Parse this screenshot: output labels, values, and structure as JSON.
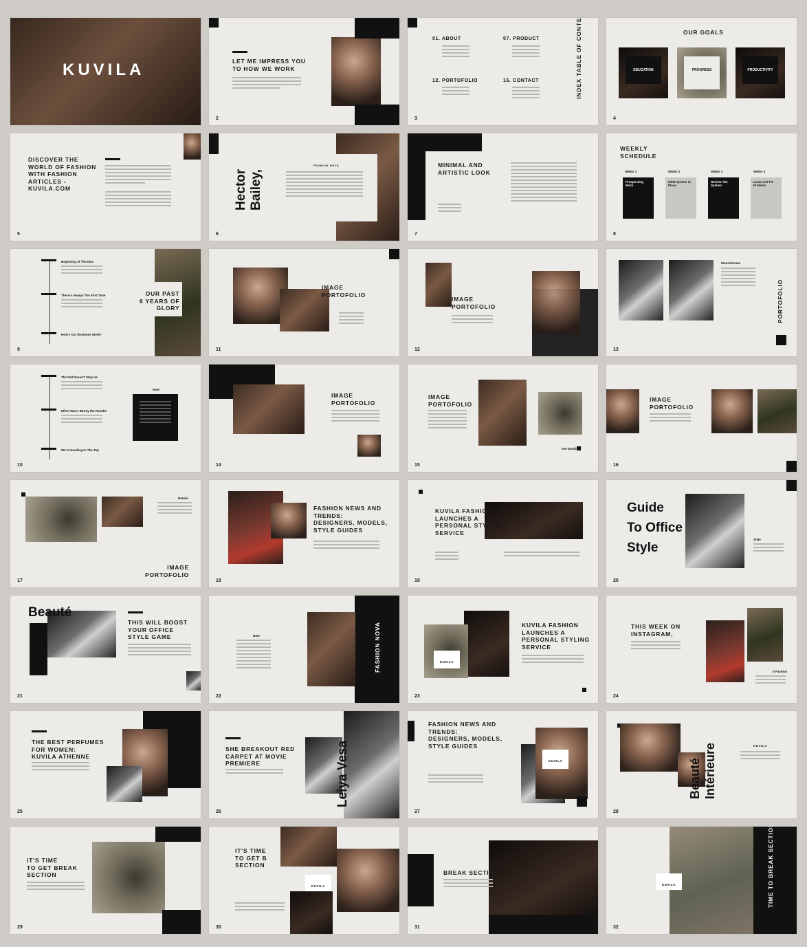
{
  "slides": [
    {
      "num": "",
      "title": "KUVILA"
    },
    {
      "num": "2",
      "title": "LET ME IMPRESS YOU\nTO HOW WE WORK"
    },
    {
      "num": "3",
      "toc": [
        "01. ABOUT",
        "07. PRODUCT",
        "12. PORTOFOLIO",
        "16. CONTACT"
      ],
      "side": "INDEX TABLE OF\nCONTENT"
    },
    {
      "num": "4",
      "title": "OUR GOALS",
      "cards": [
        "EDUCATION",
        "PROGRESS",
        "PRODUCTIVITY"
      ]
    },
    {
      "num": "5",
      "title": "DISCOVER THE\nWORLD OF FASHION\nWITH FASHION\nARTICLES -\nKUVILA.COM"
    },
    {
      "num": "6",
      "big": "Hector\nBailey,",
      "label": "FASHION NOVA"
    },
    {
      "num": "7",
      "title": "MINIMAL AND\nARTISTIC LOOK"
    },
    {
      "num": "8",
      "title": "WEEKLY\nSCHEDULE",
      "weeks": [
        "WEEK 1",
        "WEEK 2",
        "WEEK 3",
        "WEEK 4"
      ],
      "tasks": [
        "Prospecting\nWork",
        "CRM System in\nPlace",
        "Review The\nSystem",
        "Learn and Fix\nProblem"
      ]
    },
    {
      "num": "9",
      "title": "OUR PAST\n6 YEARS OF\nGLORY",
      "items": [
        "Beginning of The Idea",
        "There's Always The First Time",
        "How's Our Business Work?"
      ]
    },
    {
      "num": "11",
      "title": "IMAGE\nPORTOFOLIO"
    },
    {
      "num": "12",
      "title": "IMAGE\nPORTOFOLIO"
    },
    {
      "num": "13",
      "side": "PORTOFOLIO",
      "label": "Monochrome"
    },
    {
      "num": "10",
      "items": [
        "The Fall Doesn't Stop Us",
        "Effort Won't Betray the Results",
        "We're Heading to The Top"
      ],
      "label": "Note"
    },
    {
      "num": "14",
      "title": "IMAGE\nPORTOFOLIO"
    },
    {
      "num": "15",
      "title": "IMAGE\nPORTOFOLIO",
      "link": "See Details"
    },
    {
      "num": "16",
      "title": "IMAGE\nPORTOFOLIO"
    },
    {
      "num": "17",
      "title": "IMAGE\nPORTOFOLIO",
      "label": "Details"
    },
    {
      "num": "18",
      "title": "FASHION NEWS AND\nTRENDS:\nDESIGNERS, MODELS,\nSTYLE GUIDES"
    },
    {
      "num": "19",
      "title": "KUVILA FASHION\nLAUNCHES A\nPERSONAL STYLING\nSERVICE"
    },
    {
      "num": "20",
      "big": "Guide\nTo Office\nStyle",
      "label": "Style"
    },
    {
      "num": "21",
      "big": "Beauté",
      "title": "THIS WILL BOOST\nYOUR OFFICE\nSTYLE GAME"
    },
    {
      "num": "22",
      "side": "FASHION NOVA",
      "label": "Note"
    },
    {
      "num": "23",
      "title": "KUVILA FASHION\nLAUNCHES A\nPERSONAL STYLING\nSERVICE",
      "label": "KUVILA"
    },
    {
      "num": "24",
      "title": "THIS WEEK ON\nINSTAGRAM,",
      "label": "It Fashion"
    },
    {
      "num": "25",
      "title": "THE BEST PERFUMES\nFOR WOMEN:\nKUVILA ATHENNE"
    },
    {
      "num": "26",
      "title": "SHE BREAKOUT RED\nCARPET AT MOVIE\nPREMIERE",
      "big": "Leiya Vesa"
    },
    {
      "num": "27",
      "title": "FASHION NEWS AND\nTRENDS:\nDESIGNERS, MODELS,\nSTYLE GUIDES",
      "label": "KUVILA"
    },
    {
      "num": "28",
      "big": "Beauté\nIntérieure",
      "label": "KUVILA"
    },
    {
      "num": "29",
      "title": "IT'S TIME\nTO GET BREAK\nSECTION"
    },
    {
      "num": "30",
      "title": "IT'S TIME\nTO GET B\nSECTION",
      "label": "KUVILA"
    },
    {
      "num": "31",
      "title": "BREAK SECTION"
    },
    {
      "num": "32",
      "side": "TIME TO\nBREAK SECTION",
      "label": "KUVILA"
    }
  ]
}
